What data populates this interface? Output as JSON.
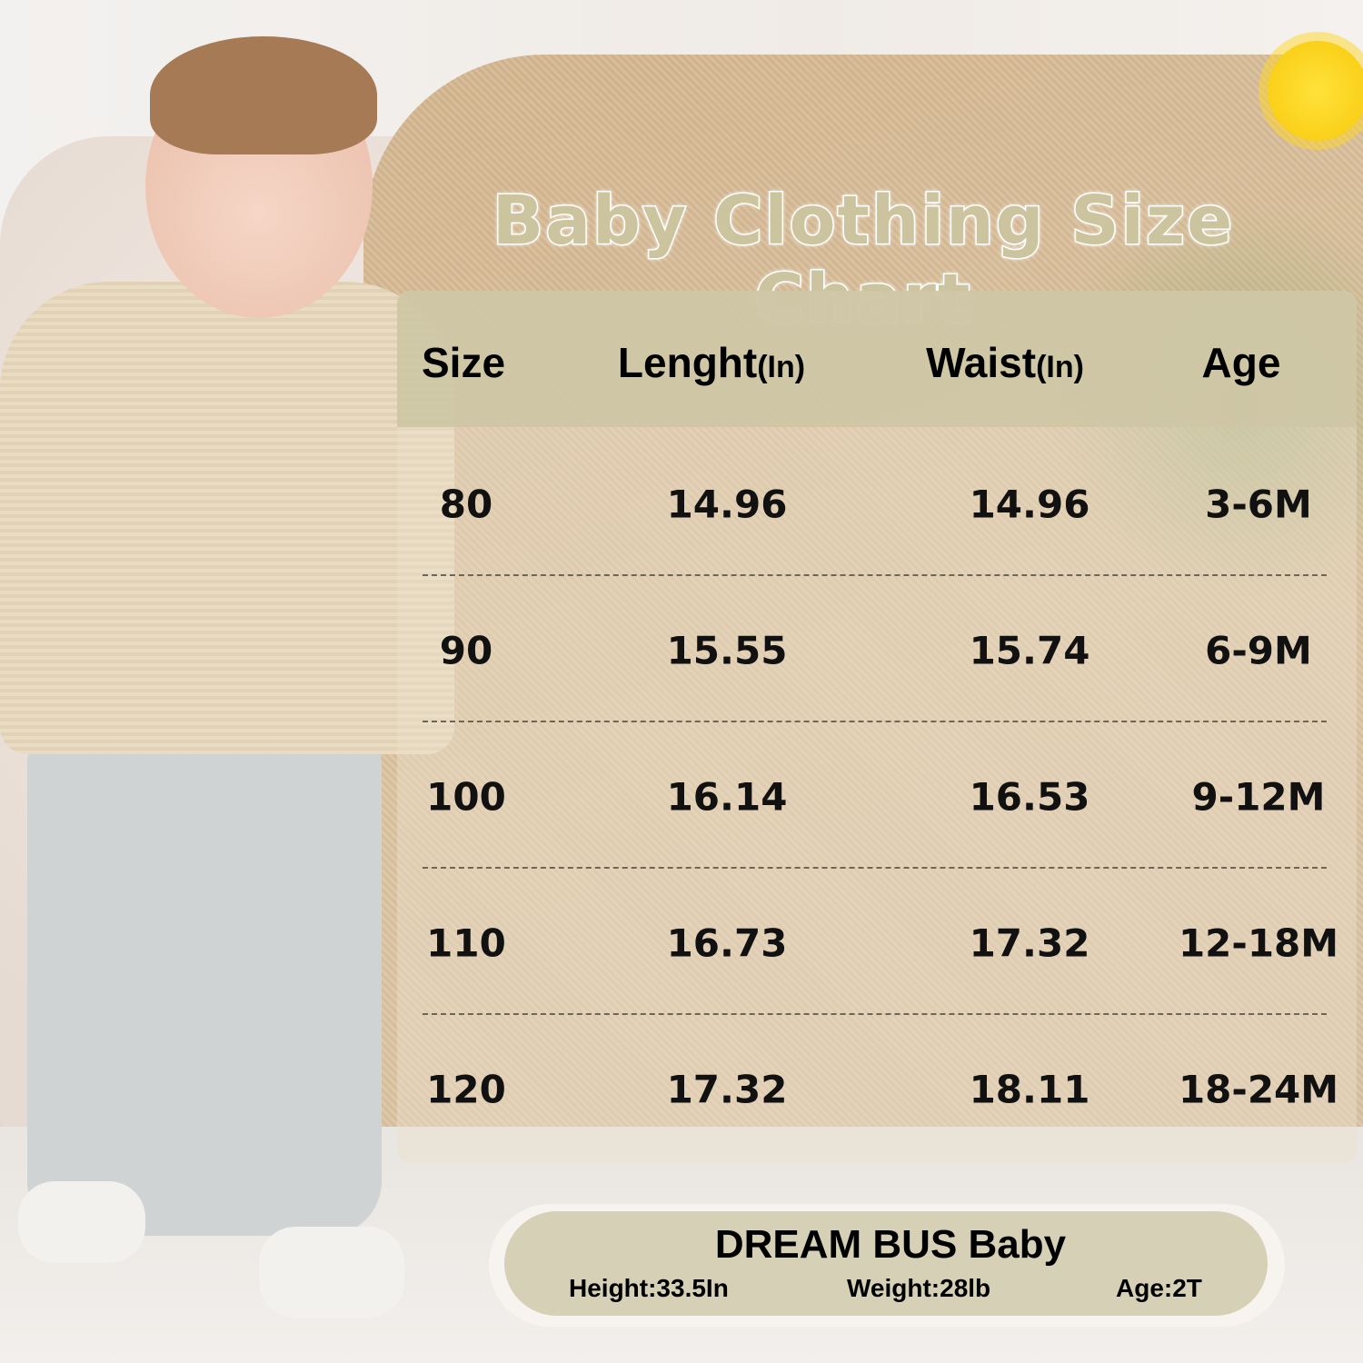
{
  "title": "Baby Clothing Size Chart",
  "table": {
    "headers": [
      {
        "label": "Size",
        "unit": ""
      },
      {
        "label": "Lenght",
        "unit": "(In)"
      },
      {
        "label": "Waist",
        "unit": "(In)"
      },
      {
        "label": "Age",
        "unit": ""
      }
    ],
    "rows": [
      [
        "80",
        "14.96",
        "14.96",
        "3-6M"
      ],
      [
        "90",
        "15.55",
        "15.74",
        "6-9M"
      ],
      [
        "100",
        "16.14",
        "16.53",
        "9-12M"
      ],
      [
        "110",
        "16.73",
        "17.32",
        "12-18M"
      ],
      [
        "120",
        "17.32",
        "18.11",
        "18-24M"
      ]
    ]
  },
  "model_card": {
    "brand": "DREAM BUS Baby",
    "height": "Height:33.5In",
    "weight": "Weight:28lb",
    "age": "Age:2T"
  },
  "colors": {
    "accent": "#cdc6a5",
    "text": "#000000"
  }
}
